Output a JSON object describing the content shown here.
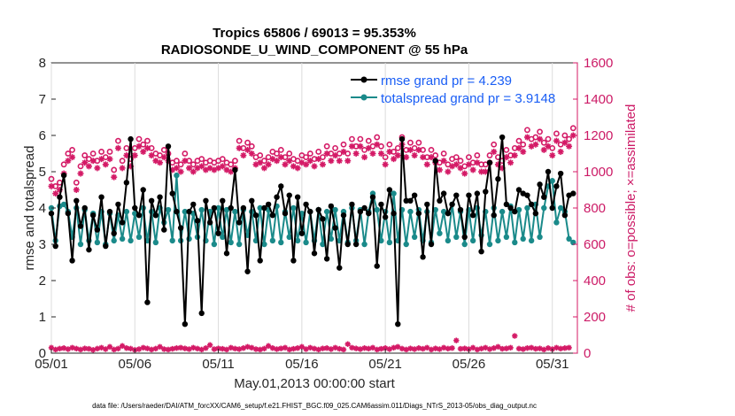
{
  "chart_data": {
    "type": "line",
    "title_line1": "Tropics 65806 / 69013 = 95.353%",
    "title_line2": "RADIOSONDE_U_WIND_COMPONENT @ 55 hPa",
    "xlabel": "May.01,2013 00:00:00 start",
    "ylabel_left": "rmse and totalspread",
    "ylabel_right": "# of obs: o=possible; ×=assimilated",
    "xlim": [
      0,
      31.5
    ],
    "ylim_left": [
      0,
      8
    ],
    "ylim_right": [
      0,
      1600
    ],
    "x_ticks": [
      0,
      5,
      10,
      15,
      20,
      25,
      30
    ],
    "x_tick_labels": [
      "05/01",
      "05/06",
      "05/11",
      "05/16",
      "05/21",
      "05/26",
      "05/31"
    ],
    "y_ticks_left": [
      "0",
      "1",
      "2",
      "3",
      "4",
      "5",
      "6",
      "7",
      "8"
    ],
    "y_ticks_right": [
      "0",
      "200",
      "400",
      "600",
      "800",
      "1000",
      "1200",
      "1400",
      "1600"
    ],
    "legend": [
      "rmse grand pr = 4.239",
      "totalspread grand pr = 3.9148"
    ],
    "footnote": "data file: /Users/raeder/DAI/ATM_forcXX/CAM6_setup/f.e21.FHIST_BGC.f09_025.CAM6assim.011/Diags_NTrS_2013-05/obs_diag_output.nc",
    "colors": {
      "rmse": "#000000",
      "spread": "#1a8a8a",
      "obs": "#d41a66",
      "legend_text": "#1a5ef5"
    },
    "series": [
      {
        "name": "rmse",
        "axis": "left",
        "values": [
          3.85,
          2.95,
          4.3,
          4.9,
          3.85,
          2.55,
          4.2,
          3.5,
          4.0,
          2.85,
          3.8,
          3.4,
          4.3,
          2.95,
          3.9,
          3.3,
          4.1,
          3.6,
          4.7,
          5.9,
          4.0,
          3.8,
          4.5,
          1.4,
          4.2,
          3.8,
          4.3,
          3.4,
          5.7,
          4.4,
          3.9,
          3.45,
          0.8,
          3.9,
          4.1,
          3.65,
          1.1,
          4.2,
          3.6,
          4.0,
          3.3,
          4.2,
          2.75,
          4.0,
          5.05,
          3.6,
          4.0,
          2.25,
          4.2,
          3.8,
          2.55,
          4.0,
          4.1,
          3.8,
          4.3,
          4.6,
          3.85,
          4.35,
          2.55,
          4.3,
          3.3,
          4.1,
          3.9,
          2.75,
          3.95,
          3.7,
          2.6,
          4.05,
          3.45,
          2.35,
          3.8,
          3.0,
          4.1,
          3.0,
          3.9,
          4.0,
          3.85,
          4.3,
          2.4,
          4.1,
          3.75,
          4.5,
          3.85,
          0.8,
          5.9,
          4.2,
          4.2,
          4.35,
          3.85,
          2.65,
          4.1,
          3.0,
          5.3,
          4.2,
          4.4,
          3.85,
          4.1,
          4.35,
          3.95,
          3.2,
          4.35,
          3.8,
          4.4,
          2.8,
          4.45,
          5.25,
          3.8,
          4.8,
          5.95,
          4.1,
          4.0,
          3.9,
          4.5,
          4.4,
          4.35,
          4.1,
          3.85,
          4.65,
          4.3,
          5.0,
          4.0,
          4.6,
          4.95,
          3.8,
          4.35,
          4.4
        ]
      },
      {
        "name": "totalspread",
        "axis": "left",
        "values": [
          4.0,
          3.1,
          4.05,
          4.1,
          3.9,
          3.2,
          4.0,
          3.0,
          3.95,
          3.1,
          3.85,
          3.05,
          3.9,
          3.0,
          3.85,
          3.1,
          3.8,
          3.15,
          3.9,
          3.1,
          3.85,
          3.2,
          4.0,
          3.1,
          3.9,
          3.05,
          4.0,
          3.6,
          3.95,
          3.1,
          4.9,
          3.1,
          3.9,
          3.15,
          3.85,
          3.2,
          3.95,
          3.1,
          3.9,
          3.0,
          4.0,
          3.2,
          3.95,
          3.05,
          3.9,
          3.0,
          3.95,
          3.25,
          3.9,
          3.1,
          4.0,
          3.0,
          3.95,
          3.1,
          4.05,
          3.05,
          3.9,
          3.2,
          4.0,
          3.1,
          3.85,
          3.05,
          3.9,
          3.1,
          3.95,
          3.0,
          3.9,
          3.15,
          3.95,
          3.1,
          3.9,
          3.05,
          4.0,
          3.1,
          3.95,
          3.0,
          3.9,
          4.4,
          3.95,
          3.1,
          3.9,
          3.05,
          4.4,
          3.1,
          3.95,
          3.0,
          3.9,
          3.2,
          3.95,
          3.1,
          3.9,
          3.05,
          3.95,
          3.3,
          3.9,
          3.1,
          4.1,
          3.2,
          3.9,
          3.0,
          3.95,
          3.1,
          4.0,
          3.25,
          3.9,
          3.0,
          4.0,
          3.1,
          3.9,
          3.2,
          4.05,
          3.05,
          3.95,
          3.15,
          4.0,
          3.1,
          4.1,
          3.2,
          4.0,
          4.6,
          4.75,
          3.6,
          4.0,
          3.9,
          3.15,
          3.05
        ]
      },
      {
        "name": "possible",
        "axis": "right",
        "values": [
          960,
          920,
          940,
          1040,
          1100,
          1120,
          940,
          1030,
          1090,
          1070,
          1100,
          1060,
          1110,
          1080,
          1110,
          1010,
          1170,
          1060,
          1130,
          1070,
          1130,
          1180,
          1150,
          1170,
          1130,
          1100,
          1090,
          1120,
          1100,
          1050,
          1060,
          1040,
          1100,
          1060,
          1040,
          1060,
          1070,
          1050,
          1060,
          1050,
          1060,
          1070,
          1050,
          1040,
          1060,
          1170,
          1130,
          1160,
          1140,
          1080,
          1090,
          1060,
          1080,
          1110,
          1100,
          1120,
          1080,
          1100,
          1070,
          1060,
          1090,
          1080,
          1100,
          1070,
          1110,
          1080,
          1140,
          1100,
          1130,
          1100,
          1150,
          1100,
          1180,
          1140,
          1180,
          1120,
          1170,
          1140,
          1190,
          1140,
          1080,
          1150,
          1110,
          1130,
          1190,
          1120,
          1160,
          1130,
          1160,
          1120,
          1080,
          1120,
          1090,
          1050,
          1100,
          1040,
          1070,
          1080,
          1060,
          1030,
          1080,
          1050,
          1090,
          1040,
          1040,
          1090,
          1150,
          1080,
          1060,
          1120,
          1090,
          1130,
          1170,
          1150,
          1230,
          1180,
          1190,
          1220,
          1160,
          1180,
          1130,
          1210,
          1150,
          1200,
          1180,
          1240
        ]
      },
      {
        "name": "assimilated",
        "axis": "right",
        "values": [
          920,
          880,
          900,
          990,
          1060,
          1080,
          900,
          990,
          1050,
          1030,
          1060,
          1020,
          1070,
          1040,
          1070,
          970,
          1130,
          1020,
          1090,
          1030,
          1090,
          1140,
          1110,
          1130,
          1090,
          1060,
          1050,
          1080,
          1060,
          1010,
          1020,
          1000,
          1060,
          1020,
          1000,
          1020,
          1030,
          1010,
          1020,
          1010,
          1020,
          1030,
          1010,
          1000,
          1020,
          1130,
          1090,
          1120,
          1100,
          1040,
          1050,
          1020,
          1040,
          1070,
          1060,
          1080,
          1040,
          1060,
          1030,
          1020,
          1050,
          1040,
          1060,
          1030,
          1070,
          1040,
          1100,
          1060,
          1090,
          1060,
          1110,
          1060,
          1140,
          1100,
          1140,
          1080,
          1130,
          1100,
          1150,
          1100,
          1040,
          1110,
          1070,
          1090,
          1150,
          1080,
          1120,
          1090,
          1120,
          1080,
          1040,
          1080,
          1050,
          1010,
          1060,
          1000,
          1030,
          1040,
          1020,
          990,
          1040,
          1010,
          1050,
          1000,
          1000,
          1050,
          1110,
          1040,
          1020,
          1080,
          1050,
          1090,
          1130,
          1110,
          1190,
          1140,
          1150,
          1180,
          1120,
          1140,
          1090,
          1170,
          1110,
          1160,
          1140,
          1200
        ]
      },
      {
        "name": "low_count_markers",
        "axis": "right",
        "values": [
          30,
          20,
          25,
          28,
          22,
          30,
          25,
          20,
          26,
          24,
          18,
          25,
          30,
          22,
          35,
          20,
          25,
          40,
          28,
          25,
          18,
          22,
          30,
          26,
          20,
          25,
          35,
          22,
          20,
          24,
          28,
          30,
          26,
          22,
          30,
          25,
          20,
          28,
          45,
          22,
          26,
          24,
          20,
          30,
          25,
          22,
          28,
          35,
          30,
          22,
          20,
          25,
          40,
          28,
          22,
          26,
          30,
          20,
          24,
          28,
          35,
          22,
          30,
          25,
          20,
          26,
          28,
          22,
          30,
          24,
          20,
          50,
          30,
          26,
          22,
          28,
          25,
          30,
          20,
          24,
          28,
          22,
          30,
          35,
          25,
          20,
          26,
          22,
          28,
          24,
          30,
          20,
          26,
          22,
          30,
          25,
          28,
          70,
          24,
          26,
          22,
          30,
          20,
          25,
          30,
          22,
          28,
          35,
          24,
          26,
          30,
          95,
          25,
          22,
          28,
          30,
          24,
          26,
          20,
          28,
          22,
          30,
          25,
          28,
          30
        ]
      }
    ]
  }
}
